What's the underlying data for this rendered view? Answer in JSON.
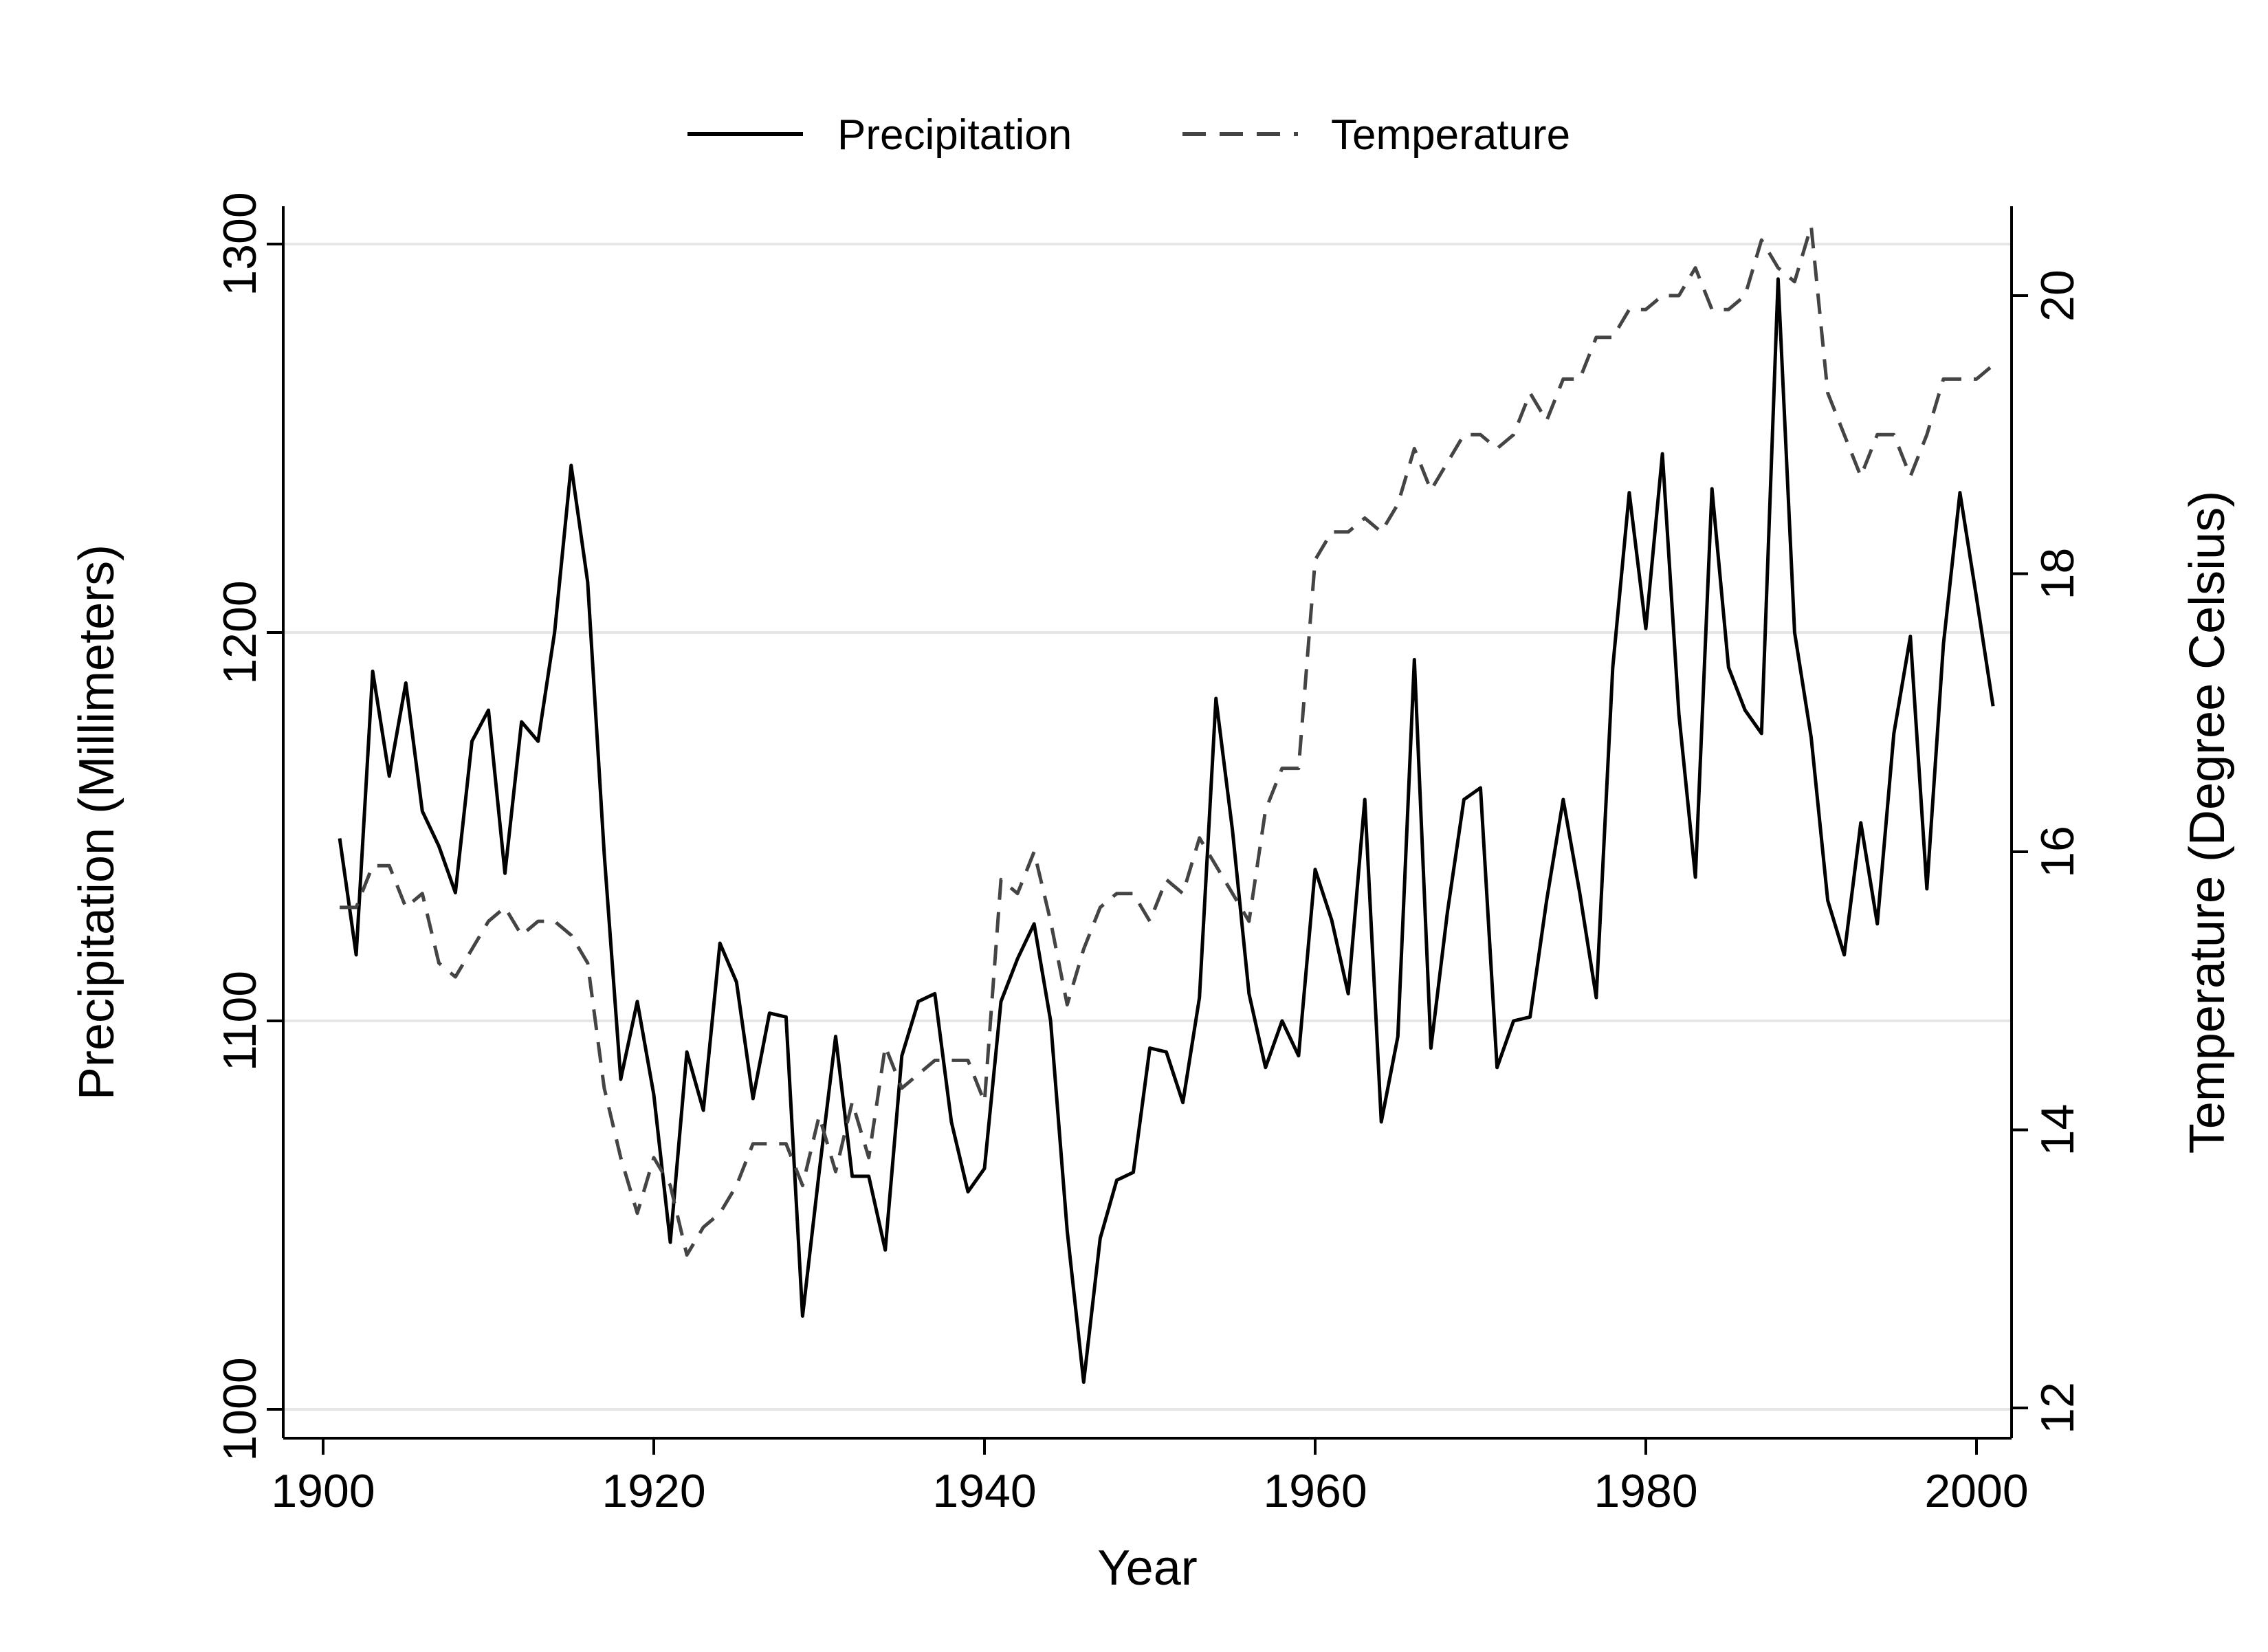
{
  "chart_data": {
    "type": "line",
    "title": "",
    "xlabel": "Year",
    "ylabel": "Precipitation (Millimeters)",
    "y2label": "Temperature (Degree Celsius)",
    "xlim": [
      1900,
      2001
    ],
    "ylim": [
      1000,
      1300
    ],
    "y2lim": [
      12,
      20.5
    ],
    "xticks": [
      1900,
      1920,
      1940,
      1960,
      1980,
      2000
    ],
    "yticks": [
      1000,
      1100,
      1200,
      1300
    ],
    "y2ticks": [
      12,
      14,
      16,
      18,
      20
    ],
    "grid": true,
    "legend_position": "top",
    "x": [
      1901,
      1902,
      1903,
      1904,
      1905,
      1906,
      1907,
      1908,
      1909,
      1910,
      1911,
      1912,
      1913,
      1914,
      1915,
      1916,
      1917,
      1918,
      1919,
      1920,
      1921,
      1922,
      1923,
      1924,
      1925,
      1926,
      1927,
      1928,
      1929,
      1930,
      1931,
      1932,
      1933,
      1934,
      1935,
      1936,
      1937,
      1938,
      1939,
      1940,
      1941,
      1942,
      1943,
      1944,
      1945,
      1946,
      1947,
      1948,
      1949,
      1950,
      1951,
      1952,
      1953,
      1954,
      1955,
      1956,
      1957,
      1958,
      1959,
      1960,
      1961,
      1962,
      1963,
      1964,
      1965,
      1966,
      1967,
      1968,
      1969,
      1970,
      1971,
      1972,
      1973,
      1974,
      1975,
      1976,
      1977,
      1978,
      1979,
      1980,
      1981,
      1982,
      1983,
      1984,
      1985,
      1986,
      1987,
      1988,
      1989,
      1990,
      1991,
      1992,
      1993,
      1994,
      1995,
      1996,
      1997,
      1998,
      1999,
      2000,
      2001
    ],
    "series": [
      {
        "name": "Precipitation",
        "axis": "left",
        "style": "solid",
        "color": "#000000",
        "values": [
          1147,
          1117,
          1190,
          1163,
          1187,
          1154,
          1145,
          1133,
          1172,
          1180,
          1138,
          1177,
          1172,
          1200,
          1243,
          1213,
          1143,
          1085,
          1105,
          1081,
          1043,
          1092,
          1077,
          1120,
          1110,
          1080,
          1102,
          1101,
          1024,
          1061,
          1096,
          1060,
          1060,
          1041,
          1091,
          1105,
          1107,
          1074,
          1056,
          1062,
          1105,
          1116,
          1125,
          1100,
          1046,
          1007,
          1044,
          1059,
          1061,
          1093,
          1092,
          1079,
          1106,
          1183,
          1149,
          1107,
          1088,
          1100,
          1091,
          1139,
          1126,
          1107,
          1157,
          1074,
          1096,
          1193,
          1093,
          1128,
          1157,
          1160,
          1088,
          1100,
          1101,
          1131,
          1157,
          1133,
          1106,
          1191,
          1236,
          1201,
          1246,
          1179,
          1137,
          1237,
          1191,
          1180,
          1174,
          1291,
          1200,
          1173,
          1131,
          1117,
          1151,
          1125,
          1174,
          1199,
          1134,
          1197,
          1236,
          1209,
          1181
        ]
      },
      {
        "name": "Temperature",
        "axis": "right",
        "style": "dashed",
        "color": "#444444",
        "values": [
          15.6,
          15.6,
          15.9,
          15.9,
          15.6,
          15.7,
          15.2,
          15.1,
          15.3,
          15.5,
          15.6,
          15.4,
          15.5,
          15.5,
          15.4,
          15.2,
          14.3,
          13.8,
          13.4,
          13.8,
          13.6,
          13.1,
          13.3,
          13.4,
          13.6,
          13.9,
          13.9,
          13.9,
          13.6,
          14.1,
          13.7,
          14.2,
          13.8,
          14.6,
          14.3,
          14.4,
          14.5,
          14.5,
          14.5,
          14.2,
          15.8,
          15.7,
          16.0,
          15.5,
          14.9,
          15.3,
          15.6,
          15.7,
          15.7,
          15.5,
          15.8,
          15.7,
          16.1,
          15.9,
          15.7,
          15.5,
          16.3,
          16.6,
          16.6,
          18.1,
          18.3,
          18.3,
          18.4,
          18.3,
          18.5,
          18.9,
          18.6,
          18.8,
          19.0,
          19.0,
          18.9,
          19.0,
          19.3,
          19.1,
          19.4,
          19.4,
          19.7,
          19.7,
          19.9,
          19.9,
          20.0,
          20.0,
          20.2,
          19.9,
          19.9,
          20.0,
          20.4,
          20.2,
          20.1,
          20.5,
          19.3,
          19.0,
          18.7,
          19.0,
          19.0,
          18.7,
          19.0,
          19.4,
          19.4,
          19.4,
          19.5
        ]
      }
    ]
  }
}
